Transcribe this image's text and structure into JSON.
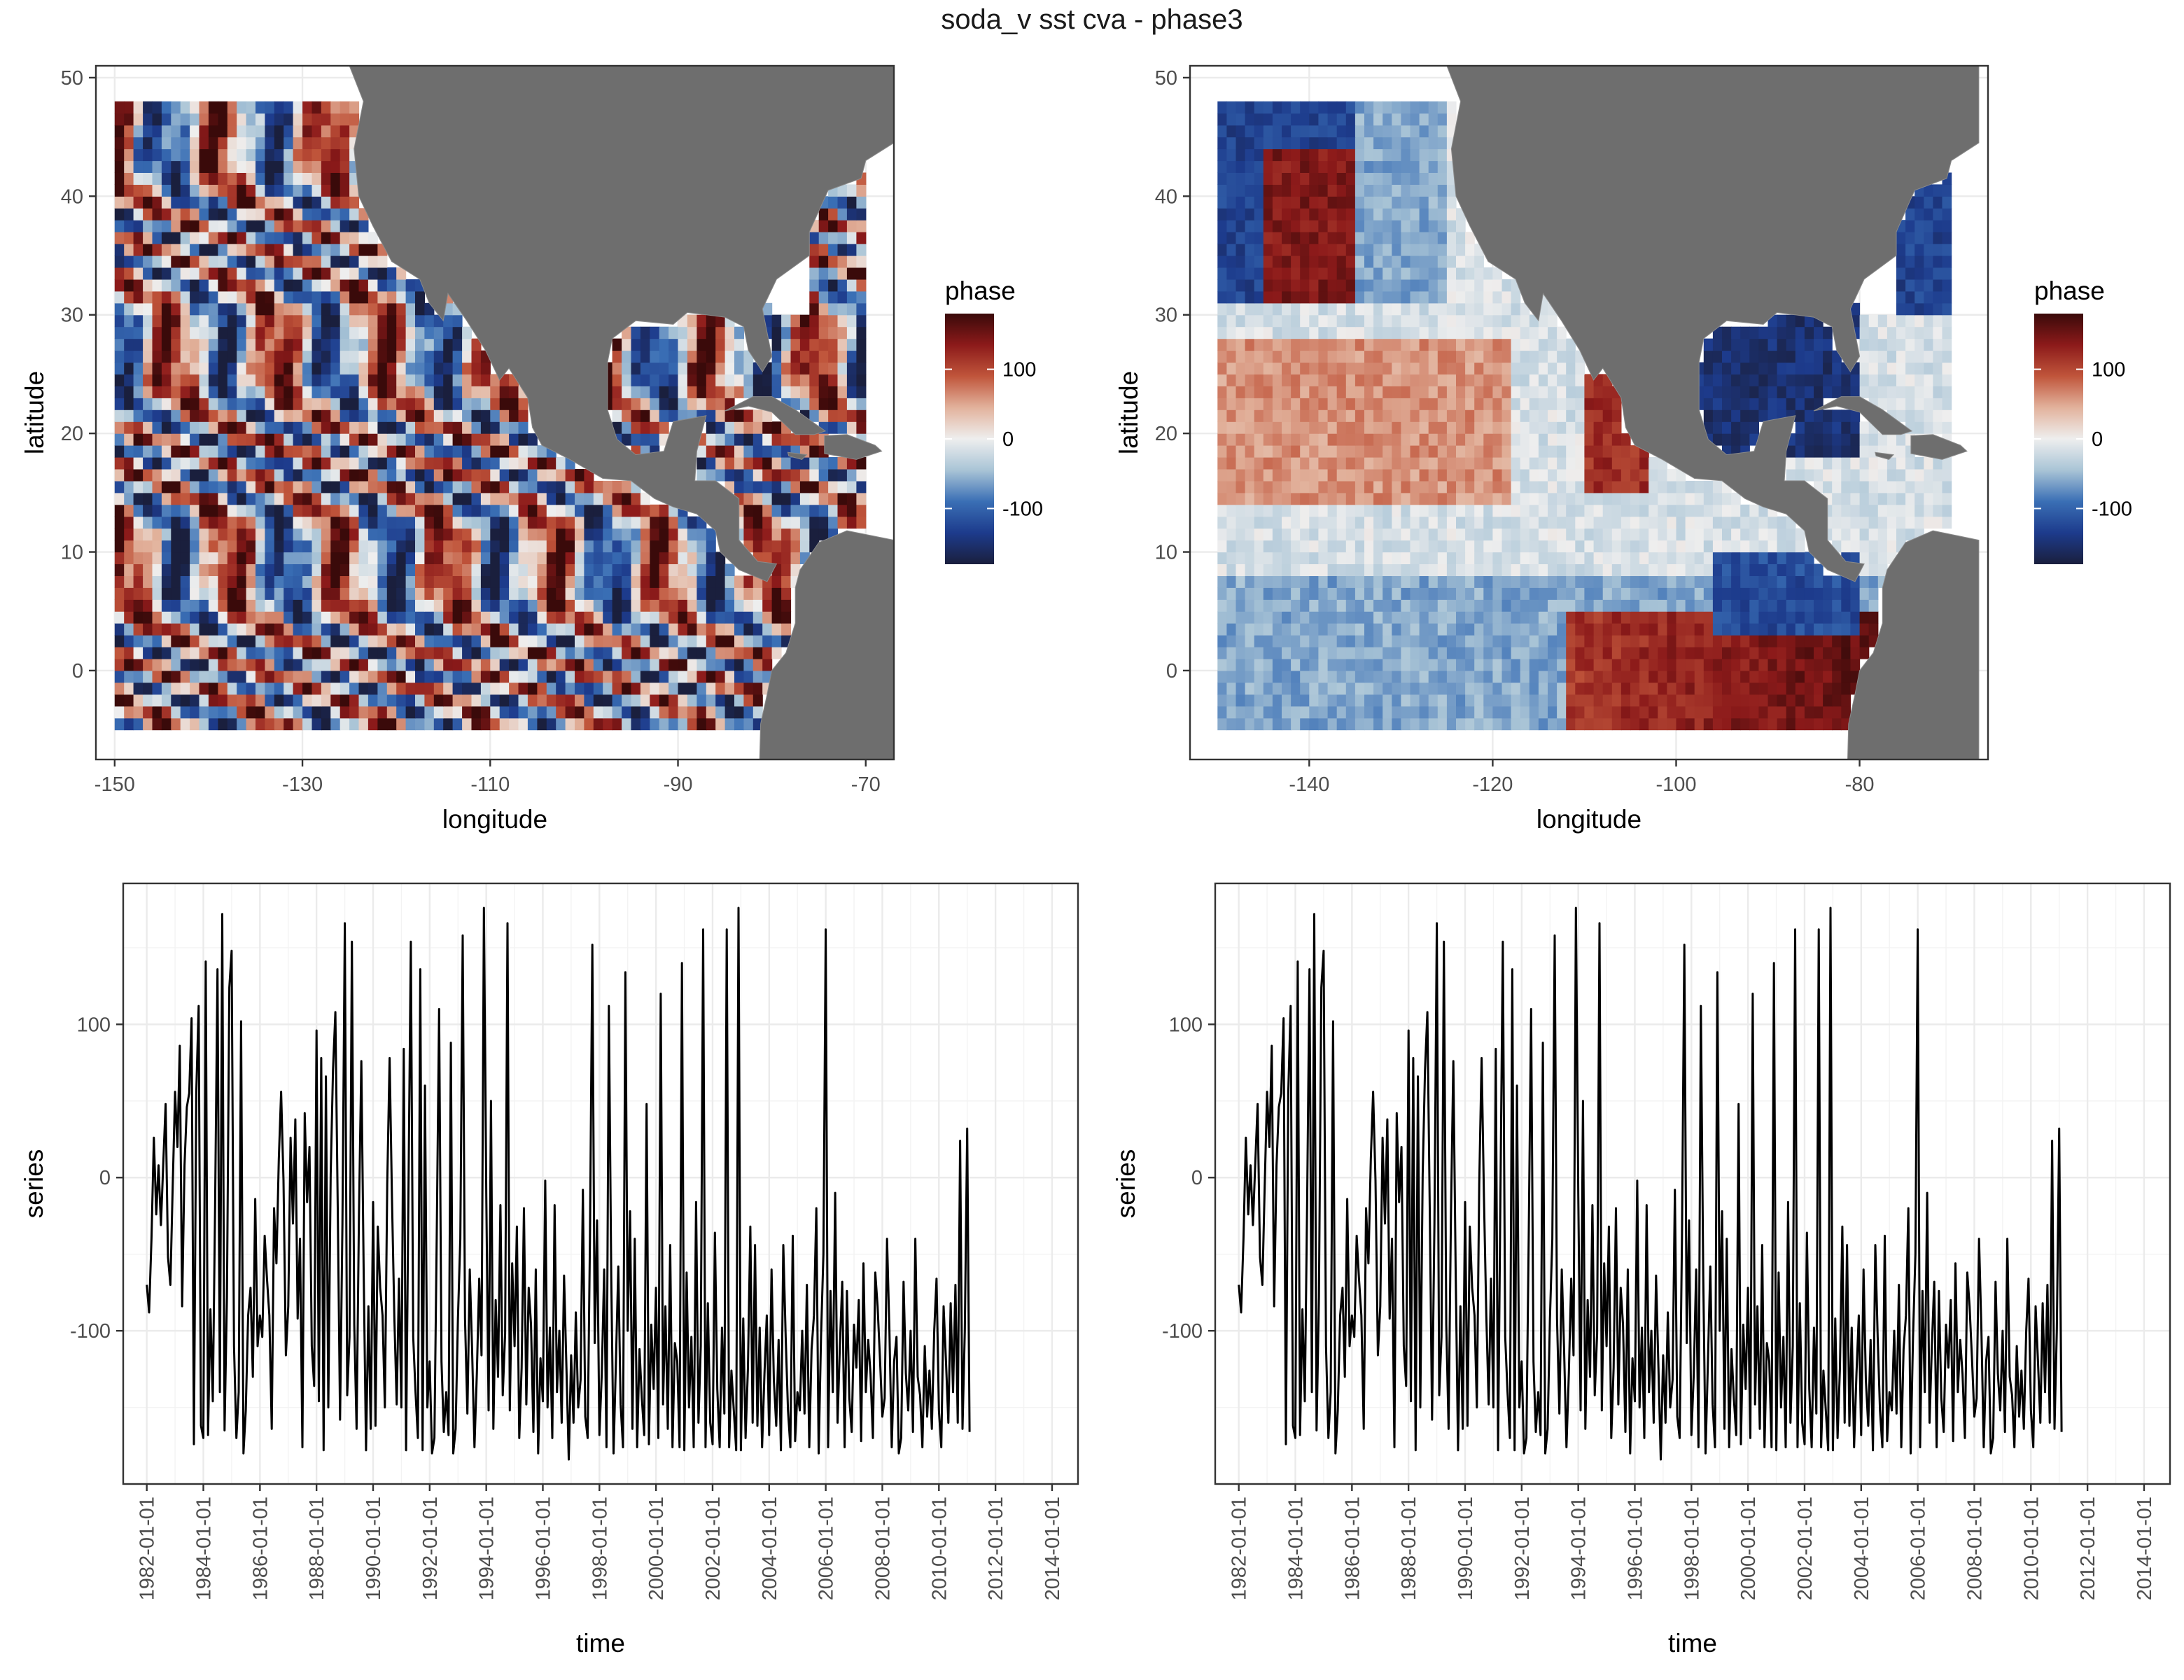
{
  "title": "soda_v sst cva - phase3",
  "colors": {
    "land": "#6e6e6e",
    "grid": "#ebebeb",
    "panel_border": "#333333",
    "line": "#000000",
    "scale": [
      "#1a1f3d",
      "#1d3b8c",
      "#3a6fb5",
      "#a9c4d6",
      "#eeeeee",
      "#e2b29c",
      "#c0553b",
      "#8c1a1a",
      "#3a0a0a"
    ]
  },
  "chart_data": [
    {
      "type": "heatmap",
      "description_of_field": "phase map",
      "xlabel": "longitude",
      "ylabel": "latitude",
      "xlim": [
        -152,
        -67
      ],
      "ylim": [
        -7.5,
        51
      ],
      "x_ticks": [
        -150,
        -130,
        -110,
        -90,
        -70
      ],
      "x_tick_labels": [
        "-150",
        "-130",
        "-110",
        "-90",
        "-70"
      ],
      "y_ticks": [
        0,
        10,
        20,
        30,
        40,
        50
      ],
      "y_tick_labels": [
        "0",
        "10",
        "20",
        "30",
        "40",
        "50"
      ],
      "data_extent": {
        "lon": [
          -149.5,
          -70.5
        ],
        "lat": [
          -4.5,
          47.5
        ]
      },
      "legend": {
        "title": "phase",
        "position": "right",
        "range": [
          -180,
          180
        ],
        "ticks": [
          100,
          0,
          -100
        ],
        "tick_labels": [
          "100",
          "0",
          "-100"
        ]
      },
      "grid": true
    },
    {
      "type": "heatmap",
      "description_of_field": "phase map",
      "xlabel": "longitude",
      "ylabel": "latitude",
      "xlim": [
        -153,
        -66
      ],
      "ylim": [
        -7.5,
        51
      ],
      "x_ticks": [
        -140,
        -120,
        -100,
        -80
      ],
      "x_tick_labels": [
        "-140",
        "-120",
        "-100",
        "-80"
      ],
      "y_ticks": [
        0,
        10,
        20,
        30,
        40,
        50
      ],
      "y_tick_labels": [
        "0",
        "10",
        "20",
        "30",
        "40",
        "50"
      ],
      "data_extent": {
        "lon": [
          -149.5,
          -70.5
        ],
        "lat": [
          -4.5,
          47.5
        ]
      },
      "legend": {
        "title": "phase",
        "position": "right",
        "range": [
          -180,
          180
        ],
        "ticks": [
          100,
          0,
          -100
        ],
        "tick_labels": [
          "100",
          "0",
          "-100"
        ]
      },
      "grid": true
    },
    {
      "type": "line",
      "xlabel": "time",
      "ylabel": "series",
      "xlim": [
        "1981-03-01",
        "2014-12-01"
      ],
      "ylim": [
        -200,
        192
      ],
      "x_ticks": [
        "1982-01-01",
        "1984-01-01",
        "1986-01-01",
        "1988-01-01",
        "1990-01-01",
        "1992-01-01",
        "1994-01-01",
        "1996-01-01",
        "1998-01-01",
        "2000-01-01",
        "2002-01-01",
        "2004-01-01",
        "2006-01-01",
        "2008-01-01",
        "2010-01-01",
        "2012-01-01",
        "2014-01-01"
      ],
      "y_ticks": [
        100,
        0,
        -100
      ],
      "y_tick_labels": [
        "100",
        "0",
        "-100"
      ],
      "series_start": "1982-01-01",
      "series_step_months": 1,
      "values": [
        -70,
        -88,
        -40,
        26,
        -24,
        8,
        -31,
        10,
        48,
        -52,
        -70,
        -6,
        56,
        20,
        86,
        -84,
        8,
        46,
        55,
        104,
        -174,
        56,
        112,
        -162,
        -170,
        141,
        -168,
        -86,
        -146,
        -18,
        136,
        -140,
        172,
        -165,
        -78,
        124,
        148,
        -110,
        -170,
        -140,
        102,
        -180,
        -152,
        -90,
        -72,
        -130,
        -14,
        -110,
        -90,
        -104,
        -38,
        -66,
        -90,
        -164,
        -20,
        -56,
        12,
        56,
        -2,
        -116,
        -84,
        26,
        -30,
        38,
        -92,
        -40,
        -176,
        42,
        -16,
        20,
        -110,
        -136,
        96,
        -146,
        78,
        -178,
        66,
        -150,
        2,
        70,
        108,
        -20,
        -158,
        -30,
        166,
        -142,
        -104,
        154,
        -96,
        -164,
        -24,
        76,
        -60,
        -178,
        -84,
        -164,
        -16,
        -162,
        -32,
        -72,
        -90,
        -150,
        -4,
        78,
        -12,
        -90,
        -148,
        -66,
        -150,
        84,
        -178,
        -10,
        154,
        -104,
        -140,
        -170,
        136,
        -178,
        60,
        -150,
        -120,
        -180,
        -170,
        -38,
        110,
        -120,
        -166,
        -140,
        -168,
        88,
        -180,
        -164,
        -92,
        -40,
        158,
        -92,
        -154,
        -60,
        -112,
        -176,
        -128,
        -66,
        -116,
        176,
        -12,
        -152,
        50,
        -164,
        -80,
        -130,
        -18,
        -142,
        -102,
        166,
        -152,
        -56,
        -110,
        -32,
        -170,
        -124,
        -20,
        -148,
        -72,
        -96,
        -166,
        -60,
        -180,
        -118,
        -146,
        -2,
        -150,
        -98,
        -170,
        -18,
        -140,
        -100,
        -160,
        -64,
        -124,
        -184,
        -116,
        -160,
        -88,
        -150,
        -132,
        -8,
        -156,
        -170,
        -40,
        152,
        -108,
        -28,
        -168,
        -128,
        -60,
        -176,
        112,
        -64,
        -180,
        -120,
        -58,
        -148,
        -176,
        134,
        -100,
        -22,
        -164,
        -40,
        -176,
        -112,
        -144,
        -168,
        48,
        -174,
        -96,
        -138,
        -72,
        -170,
        120,
        -148,
        -84,
        -164,
        -44,
        -176,
        -108,
        -120,
        -176,
        140,
        -178,
        -62,
        -150,
        -104,
        -176,
        -16,
        -160,
        -110,
        162,
        -176,
        -82,
        -160,
        -174,
        -36,
        -138,
        -176,
        -98,
        -154,
        162,
        -176,
        -126,
        -152,
        -178,
        176,
        -178,
        -92,
        -170,
        -124,
        -32,
        -160,
        -44,
        -162,
        -98,
        -176,
        -128,
        -90,
        -168,
        -60,
        -132,
        -162,
        -106,
        -178,
        -44,
        -104,
        -152,
        -176,
        -38,
        -172,
        -140,
        -152,
        -100,
        -154,
        -70,
        -176,
        -112,
        -90,
        -20,
        -180,
        -104,
        -50,
        162,
        -176,
        -74,
        -140,
        -10,
        -160,
        -110,
        -68,
        -176,
        -74,
        -144,
        -166,
        -96,
        -124,
        -80,
        -172,
        -56,
        -140,
        -106,
        -128,
        -170,
        -62,
        -84,
        -118,
        -156,
        -144,
        -40,
        -100,
        -176,
        -120,
        -104,
        -180,
        -170,
        -68,
        -128,
        -152,
        -100,
        -166,
        -40,
        -130,
        -142,
        -176,
        -110,
        -156,
        -126,
        -164,
        -100,
        -66,
        -152,
        -176,
        -84,
        -120,
        -160,
        -82,
        -140,
        -70,
        -160,
        24,
        -164,
        -100,
        32,
        -166
      ]
    },
    {
      "type": "line",
      "xlabel": "time",
      "ylabel": "series",
      "xlim": [
        "1981-03-01",
        "2014-12-01"
      ],
      "ylim": [
        -200,
        192
      ],
      "x_ticks": [
        "1982-01-01",
        "1984-01-01",
        "1986-01-01",
        "1988-01-01",
        "1990-01-01",
        "1992-01-01",
        "1994-01-01",
        "1996-01-01",
        "1998-01-01",
        "2000-01-01",
        "2002-01-01",
        "2004-01-01",
        "2006-01-01",
        "2008-01-01",
        "2010-01-01",
        "2012-01-01",
        "2014-01-01"
      ],
      "y_ticks": [
        100,
        0,
        -100
      ],
      "y_tick_labels": [
        "100",
        "0",
        "-100"
      ],
      "series_start": "1982-01-01",
      "series_step_months": 1,
      "same_as_panel": 3
    }
  ]
}
